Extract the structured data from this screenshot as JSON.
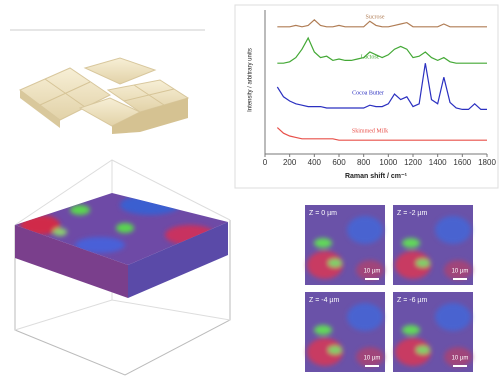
{
  "chart_data": {
    "type": "line",
    "xlabel": "Raman shift / cm⁻¹",
    "ylabel": "Intensity / arbitrary units",
    "x": [
      100,
      150,
      200,
      250,
      300,
      350,
      400,
      450,
      500,
      550,
      600,
      650,
      700,
      750,
      800,
      850,
      900,
      950,
      1000,
      1050,
      1100,
      1150,
      1200,
      1250,
      1300,
      1350,
      1400,
      1450,
      1500,
      1550,
      1600,
      1650,
      1700,
      1750,
      1800
    ],
    "xlim": [
      0,
      1800
    ],
    "xticks": [
      0,
      200,
      400,
      600,
      800,
      1000,
      1200,
      1400,
      1600,
      1800
    ],
    "ylim": [
      0,
      100
    ],
    "series": [
      {
        "name": "Sucrose",
        "color": "#b07d55",
        "values": [
          88,
          88,
          88,
          89,
          88,
          89,
          93,
          89,
          88,
          88,
          89,
          88,
          88,
          88,
          88,
          92,
          89,
          88,
          88,
          89,
          90,
          91,
          88,
          88,
          88,
          88,
          88,
          90,
          88,
          88,
          88,
          88,
          88,
          88,
          88
        ]
      },
      {
        "name": "Lactose",
        "color": "#43a835",
        "values": [
          62,
          62,
          63,
          66,
          72,
          80,
          70,
          66,
          67,
          64,
          65,
          64,
          64,
          65,
          66,
          70,
          68,
          66,
          68,
          72,
          74,
          72,
          66,
          67,
          70,
          66,
          64,
          66,
          63,
          62,
          62,
          62,
          62,
          62,
          62
        ]
      },
      {
        "name": "Cocoa Butter",
        "color": "#2b30c0",
        "values": [
          45,
          38,
          35,
          33,
          32,
          31,
          31,
          31,
          30,
          30,
          30,
          30,
          30,
          30,
          30,
          32,
          31,
          31,
          33,
          40,
          36,
          38,
          31,
          33,
          62,
          36,
          33,
          52,
          34,
          30,
          29,
          29,
          33,
          29,
          29
        ]
      },
      {
        "name": "Skimmed Milk",
        "color": "#e8504a",
        "values": [
          16,
          12,
          10,
          9,
          8,
          8,
          8,
          8,
          8,
          8,
          7,
          7,
          7,
          7,
          7,
          7,
          7,
          7,
          7,
          7,
          7,
          7,
          7,
          7,
          7,
          7,
          7,
          7,
          7,
          7,
          7,
          7,
          7,
          7,
          7
        ]
      }
    ]
  },
  "panels": [
    {
      "label": "Z = 0 µm",
      "scale": "10 µm"
    },
    {
      "label": "Z = -2 µm",
      "scale": "10 µm"
    },
    {
      "label": "Z = -4 µm",
      "scale": "10 µm"
    },
    {
      "label": "Z = -6 µm",
      "scale": "10 µm"
    }
  ]
}
